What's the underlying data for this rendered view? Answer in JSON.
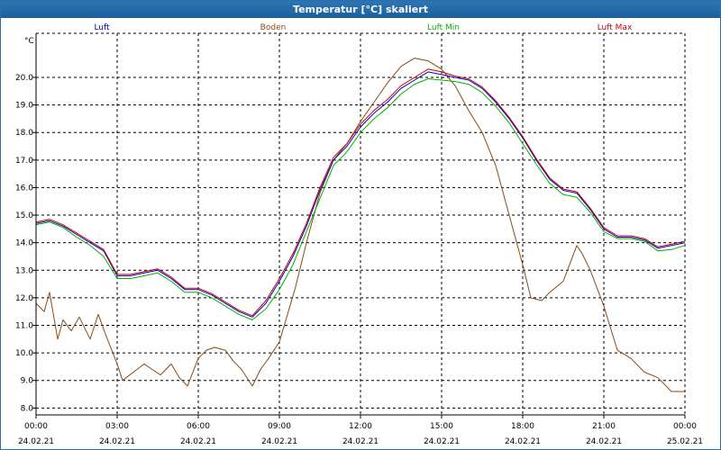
{
  "window": {
    "title": "Temperatur [°C] skaliert"
  },
  "chart_data": {
    "type": "line",
    "title": "Temperatur [°C] skaliert",
    "ylabel": "°C",
    "ylim": [
      7.75,
      21.6
    ],
    "xlim": [
      0,
      24
    ],
    "yticks": [
      8.0,
      9.0,
      10.0,
      11.0,
      12.0,
      13.0,
      14.0,
      15.0,
      16.0,
      17.0,
      18.0,
      19.0,
      20.0
    ],
    "xticks": [
      {
        "time": "00:00",
        "date": "24.02.21"
      },
      {
        "time": "03:00",
        "date": "24.02.21"
      },
      {
        "time": "06:00",
        "date": "24.02.21"
      },
      {
        "time": "09:00",
        "date": "24.02.21"
      },
      {
        "time": "12:00",
        "date": "24.02.21"
      },
      {
        "time": "15:00",
        "date": "24.02.21"
      },
      {
        "time": "18:00",
        "date": "24.02.21"
      },
      {
        "time": "21:00",
        "date": "24.02.21"
      },
      {
        "time": "00:00",
        "date": "25.02.21"
      }
    ],
    "grid": true,
    "series": [
      {
        "name": "Luft",
        "color": "#0000cc",
        "x": [
          0,
          0.5,
          1,
          1.5,
          2,
          2.5,
          3,
          3.5,
          4,
          4.5,
          5,
          5.5,
          6,
          6.5,
          7,
          7.5,
          8,
          8.5,
          9,
          9.5,
          10,
          10.5,
          11,
          11.5,
          12,
          12.5,
          13,
          13.5,
          14,
          14.5,
          15,
          15.5,
          16,
          16.5,
          17,
          17.5,
          18,
          18.5,
          19,
          19.5,
          20,
          20.5,
          21,
          21.5,
          22,
          22.5,
          23,
          23.5,
          24
        ],
        "values": [
          14.7,
          14.8,
          14.6,
          14.3,
          14.0,
          13.7,
          12.8,
          12.8,
          12.9,
          13.0,
          12.7,
          12.3,
          12.3,
          12.1,
          11.8,
          11.5,
          11.3,
          11.8,
          12.6,
          13.5,
          14.6,
          15.9,
          17.0,
          17.5,
          18.2,
          18.7,
          19.1,
          19.6,
          19.9,
          20.2,
          20.1,
          20.0,
          19.9,
          19.6,
          19.1,
          18.5,
          17.8,
          17.0,
          16.3,
          15.9,
          15.8,
          15.2,
          14.5,
          14.2,
          14.2,
          14.1,
          13.8,
          13.9,
          14.0
        ]
      },
      {
        "name": "Boden",
        "color": "#8b4a12",
        "x": [
          0,
          0.3,
          0.5,
          0.8,
          1,
          1.3,
          1.6,
          2,
          2.3,
          2.6,
          3,
          3.2,
          3.6,
          4,
          4.3,
          4.6,
          5,
          5.3,
          5.6,
          6,
          6.3,
          6.6,
          7,
          7.3,
          7.6,
          8,
          8.3,
          8.6,
          9,
          9.3,
          9.6,
          10,
          10.5,
          11,
          11.5,
          12,
          12.5,
          13,
          13.5,
          14,
          14.5,
          15,
          15.5,
          16,
          16.5,
          17,
          17.5,
          18,
          18.3,
          18.7,
          19,
          19.5,
          20,
          20.2,
          20.5,
          21,
          21.5,
          22,
          22.5,
          23,
          23.5,
          24
        ],
        "values": [
          11.8,
          11.5,
          12.2,
          10.5,
          11.2,
          10.8,
          11.3,
          10.5,
          11.4,
          10.6,
          9.6,
          9.0,
          9.3,
          9.6,
          9.4,
          9.2,
          9.6,
          9.1,
          8.8,
          9.8,
          10.1,
          10.2,
          10.1,
          9.7,
          9.4,
          8.8,
          9.4,
          9.8,
          10.4,
          11.4,
          12.4,
          14.0,
          15.8,
          17.0,
          17.6,
          18.4,
          19.1,
          19.8,
          20.4,
          20.7,
          20.6,
          20.3,
          19.7,
          18.8,
          18.0,
          16.8,
          15.0,
          13.2,
          12.0,
          11.9,
          12.2,
          12.6,
          13.9,
          13.6,
          13.0,
          11.7,
          10.1,
          9.8,
          9.3,
          9.1,
          8.6,
          8.6
        ]
      },
      {
        "name": "Luft Min",
        "color": "#00b000",
        "x": [
          0,
          0.5,
          1,
          1.5,
          2,
          2.5,
          3,
          3.5,
          4,
          4.5,
          5,
          5.5,
          6,
          6.5,
          7,
          7.5,
          8,
          8.5,
          9,
          9.5,
          10,
          10.5,
          11,
          11.5,
          12,
          12.5,
          13,
          13.5,
          14,
          14.5,
          15,
          15.5,
          16,
          16.5,
          17,
          17.5,
          18,
          18.5,
          19,
          19.5,
          20,
          20.5,
          21,
          21.5,
          22,
          22.5,
          23,
          23.5,
          24
        ],
        "values": [
          14.65,
          14.75,
          14.55,
          14.2,
          13.9,
          13.5,
          12.7,
          12.7,
          12.8,
          12.9,
          12.6,
          12.2,
          12.2,
          12.0,
          11.7,
          11.4,
          11.2,
          11.6,
          12.3,
          13.2,
          14.4,
          15.6,
          16.8,
          17.3,
          18.0,
          18.5,
          18.9,
          19.4,
          19.75,
          19.95,
          19.9,
          19.85,
          19.75,
          19.45,
          18.95,
          18.35,
          17.6,
          16.85,
          16.15,
          15.75,
          15.65,
          15.1,
          14.4,
          14.15,
          14.15,
          14.05,
          13.7,
          13.75,
          13.9
        ]
      },
      {
        "name": "Luft Max",
        "color": "#cc0000",
        "x": [
          0,
          0.5,
          1,
          1.5,
          2,
          2.5,
          3,
          3.5,
          4,
          4.5,
          5,
          5.5,
          6,
          6.5,
          7,
          7.5,
          8,
          8.5,
          9,
          9.5,
          10,
          10.5,
          11,
          11.5,
          12,
          12.5,
          13,
          13.5,
          14,
          14.5,
          15,
          15.5,
          16,
          16.5,
          17,
          17.5,
          18,
          18.5,
          19,
          19.5,
          20,
          20.5,
          21,
          21.5,
          22,
          22.5,
          23,
          23.5,
          24
        ],
        "values": [
          14.75,
          14.85,
          14.65,
          14.35,
          14.05,
          13.75,
          12.85,
          12.85,
          12.95,
          13.05,
          12.75,
          12.35,
          12.35,
          12.15,
          11.85,
          11.55,
          11.35,
          11.9,
          12.7,
          13.6,
          14.7,
          16.0,
          17.1,
          17.6,
          18.3,
          18.8,
          19.2,
          19.7,
          20.0,
          20.3,
          20.2,
          20.05,
          19.95,
          19.65,
          19.15,
          18.55,
          17.85,
          17.05,
          16.35,
          15.95,
          15.85,
          15.25,
          14.55,
          14.25,
          14.25,
          14.15,
          13.85,
          13.95,
          14.05
        ]
      }
    ]
  }
}
